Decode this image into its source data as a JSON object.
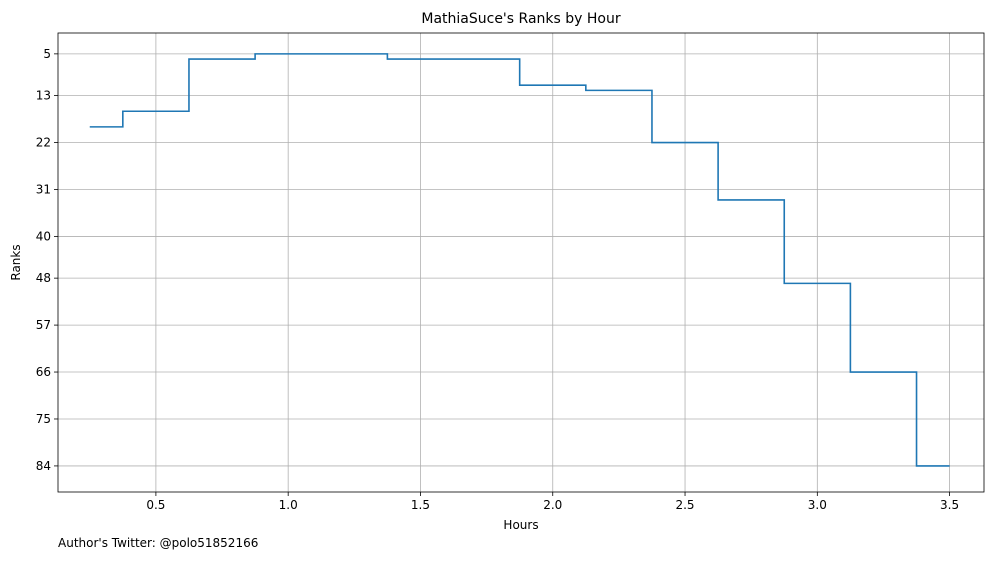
{
  "chart_data": {
    "type": "line",
    "step": "post",
    "title": "MathiaSuce's Ranks by Hour",
    "xlabel": "Hours",
    "ylabel": "Ranks",
    "xlim": [
      0.13,
      3.63
    ],
    "ylim": [
      89,
      1
    ],
    "y_inverted": true,
    "grid": true,
    "x_ticks": [
      0.5,
      1.0,
      1.5,
      2.0,
      2.5,
      3.0,
      3.5
    ],
    "x_tick_labels": [
      "0.5",
      "1.0",
      "1.5",
      "2.0",
      "2.5",
      "3.0",
      "3.5"
    ],
    "y_ticks": [
      5,
      13,
      22,
      31,
      40,
      48,
      57,
      66,
      75,
      84
    ],
    "y_tick_labels": [
      "5",
      "13",
      "22",
      "31",
      "40",
      "48",
      "57",
      "66",
      "75",
      "84"
    ],
    "color": "#1f77b4",
    "series": [
      {
        "x": [
          0.25,
          0.375,
          0.625,
          0.875,
          1.375,
          1.875,
          2.125,
          2.375,
          2.625,
          2.875,
          3.125,
          3.375,
          3.5
        ],
        "values": [
          19,
          16,
          6,
          5,
          6,
          11,
          12,
          22,
          33,
          49,
          66,
          84,
          84
        ]
      }
    ]
  },
  "footer": {
    "text": "Author's Twitter: @polo51852166"
  }
}
